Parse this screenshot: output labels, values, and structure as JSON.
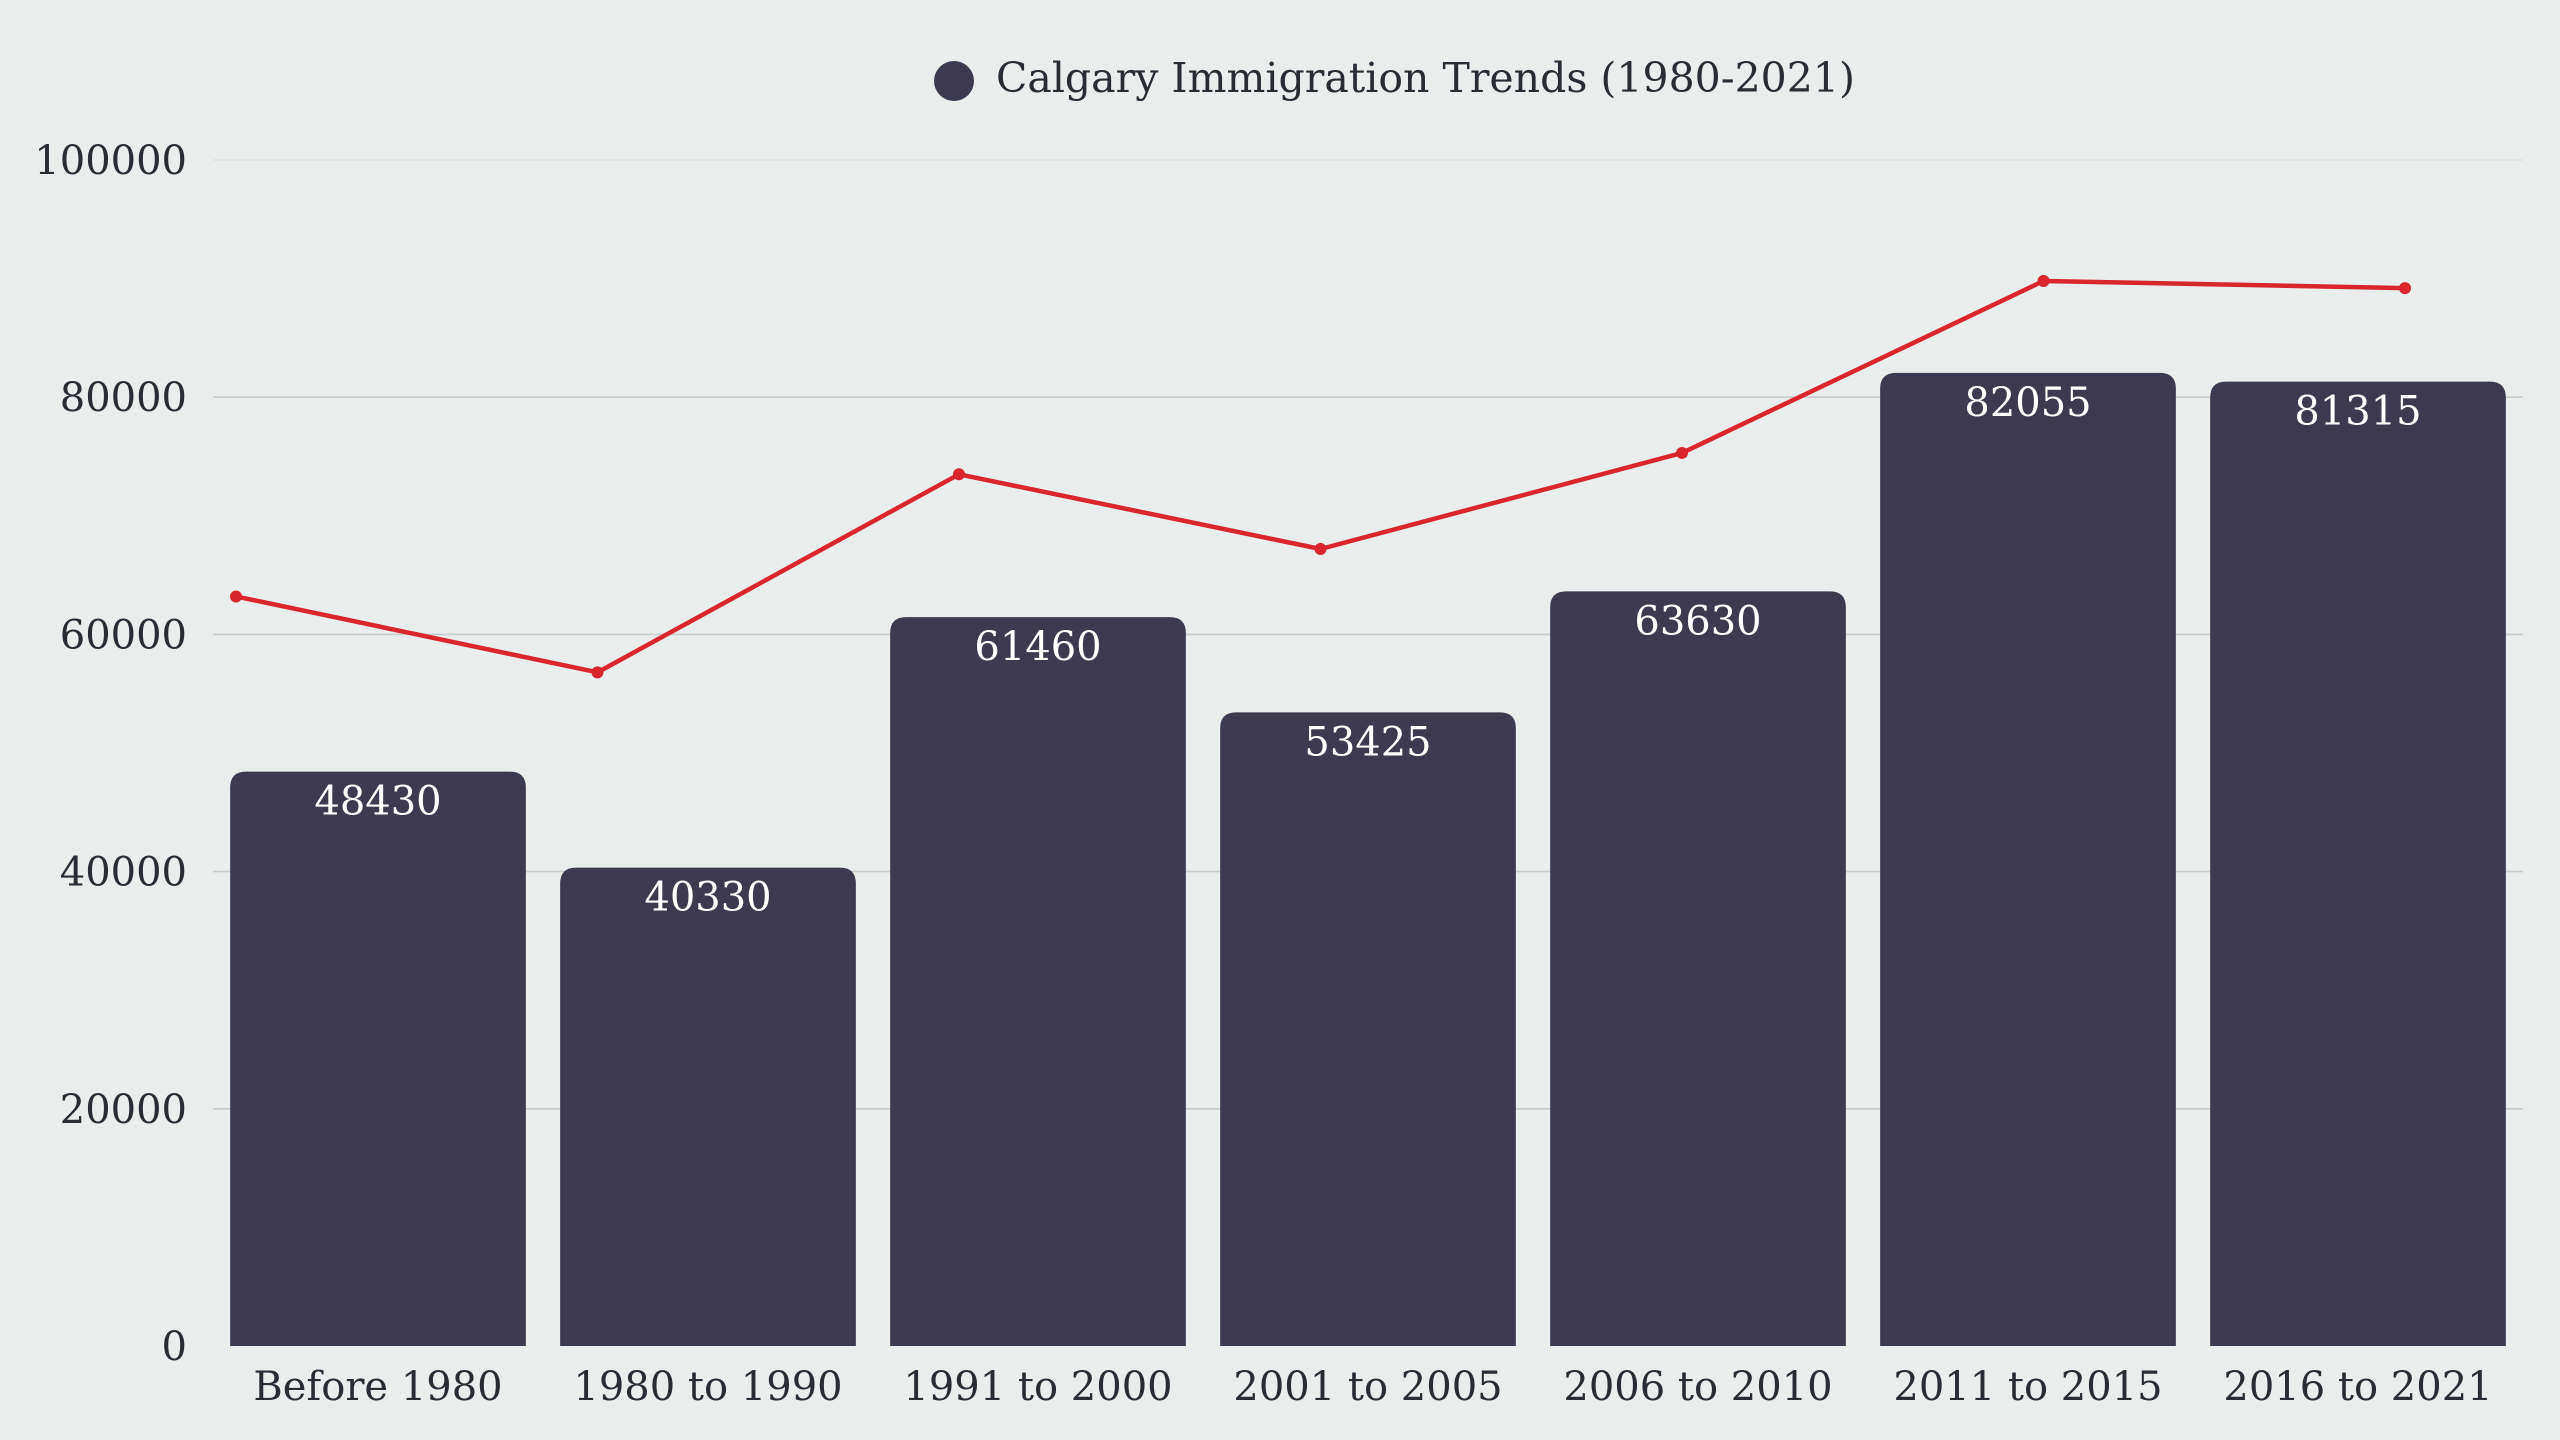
{
  "chart_data": {
    "type": "bar",
    "title": "",
    "xlabel": "",
    "ylabel": "",
    "ylim": [
      0,
      100000
    ],
    "y_ticks": [
      "0",
      "20000",
      "40000",
      "60000",
      "80000",
      "100000"
    ],
    "categories": [
      "Before 1980",
      "1980 to 1990",
      "1991 to 2000",
      "2001 to 2005",
      "2006 to 2010",
      "2011 to 2015",
      "2016 to 2021"
    ],
    "series": [
      {
        "name": "Calgary Immigration Trends (1980-2021)",
        "type": "bar",
        "color": "#3d3950",
        "values": [
          48430,
          40330,
          61460,
          53425,
          63630,
          82055,
          81315
        ],
        "labels": [
          "48430",
          "40330",
          "61460",
          "53425",
          "63630",
          "82055",
          "81315"
        ]
      },
      {
        "type": "line",
        "color": "#d9252e",
        "values": [
          63200,
          56800,
          73500,
          67200,
          75300,
          89800,
          89200
        ]
      }
    ],
    "legend": "top-center",
    "grid": true,
    "gridline_color": "#c9cdcc"
  }
}
